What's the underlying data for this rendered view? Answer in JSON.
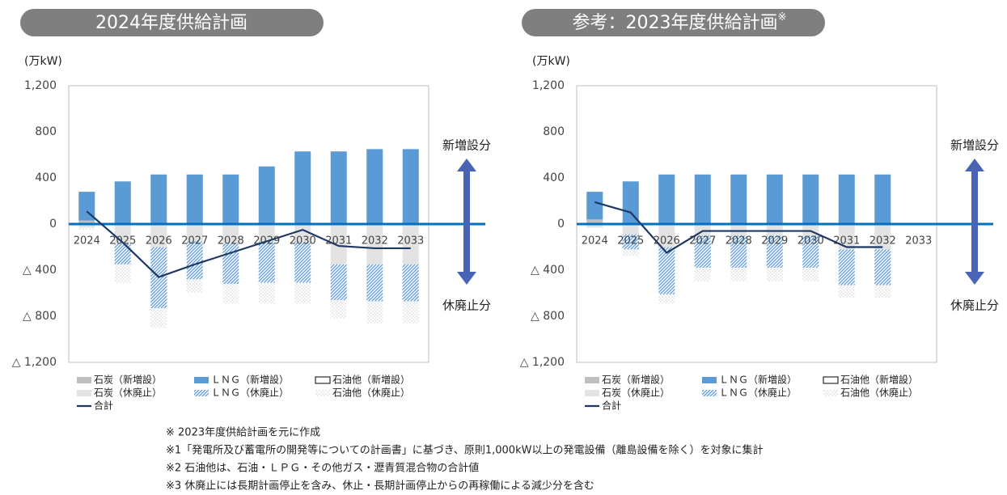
{
  "chart_data": [
    {
      "type": "bar",
      "title": "2024年度供給計画",
      "y_label": "(万kW)",
      "categories": [
        "2024",
        "2025",
        "2026",
        "2027",
        "2028",
        "2029",
        "2030",
        "2031",
        "2032",
        "2033"
      ],
      "ylim": [
        -1200,
        1200
      ],
      "yticks": [
        {
          "value": 1200,
          "label": "1,200"
        },
        800,
        400,
        0,
        {
          "value": -400,
          "label": "△ 400"
        },
        {
          "value": -800,
          "label": "△ 800"
        },
        {
          "value": -1200,
          "label": "△ 1,200"
        }
      ],
      "annotations": [
        "新増設分",
        "休廃止分"
      ],
      "series": [
        {
          "name": "石炭（新増設）",
          "color": "#bfbfbf",
          "values": [
            30,
            0,
            0,
            0,
            0,
            0,
            0,
            0,
            0,
            0
          ]
        },
        {
          "name": "ＬＮＧ（新増設）",
          "color": "#5b9bd5",
          "values": [
            250,
            370,
            430,
            430,
            430,
            500,
            630,
            630,
            650,
            650
          ]
        },
        {
          "name": "石油他（新増設）",
          "color": "#ffffff",
          "values": [
            0,
            0,
            0,
            0,
            0,
            0,
            0,
            0,
            0,
            0
          ]
        },
        {
          "name": "石炭（休廃止）",
          "color": "#e3e3e3",
          "values": [
            -30,
            -170,
            -200,
            -150,
            -170,
            -150,
            -150,
            -350,
            -350,
            -350
          ]
        },
        {
          "name": "ＬＮＧ（休廃止）",
          "color": "#5b9bd5",
          "pattern": "hatch",
          "values": [
            0,
            -180,
            -530,
            -330,
            -350,
            -360,
            -360,
            -310,
            -320,
            -320
          ]
        },
        {
          "name": "石油他（休廃止）",
          "color": "#c8c8c8",
          "pattern": "dots",
          "values": [
            -20,
            -160,
            -170,
            -120,
            -170,
            -180,
            -180,
            -160,
            -190,
            -190
          ]
        },
        {
          "name": "合計",
          "type": "line",
          "color": "#1f3864",
          "values": [
            110,
            -160,
            -460,
            -350,
            -250,
            -150,
            -50,
            -190,
            -210,
            -210
          ]
        }
      ]
    },
    {
      "type": "bar",
      "title": "参考：2023年度供給計画",
      "title_mark": "※",
      "y_label": "(万kW)",
      "categories": [
        "2024",
        "2025",
        "2026",
        "2027",
        "2028",
        "2029",
        "2030",
        "2031",
        "2032",
        "2033"
      ],
      "ylim": [
        -1200,
        1200
      ],
      "yticks": [
        {
          "value": 1200,
          "label": "1,200"
        },
        800,
        400,
        0,
        {
          "value": -400,
          "label": "△ 400"
        },
        {
          "value": -800,
          "label": "△ 800"
        },
        {
          "value": -1200,
          "label": "△ 1,200"
        }
      ],
      "annotations": [
        "新増設分",
        "休廃止分"
      ],
      "series": [
        {
          "name": "石炭（新増設）",
          "color": "#bfbfbf",
          "values": [
            40,
            0,
            0,
            0,
            0,
            0,
            0,
            0,
            0,
            0
          ]
        },
        {
          "name": "ＬＮＧ（新増設）",
          "color": "#5b9bd5",
          "values": [
            240,
            370,
            430,
            430,
            430,
            430,
            430,
            430,
            430,
            0
          ]
        },
        {
          "name": "石油他（新増設）",
          "color": "#ffffff",
          "values": [
            0,
            0,
            0,
            0,
            0,
            0,
            0,
            0,
            0,
            0
          ]
        },
        {
          "name": "石炭（休廃止）",
          "color": "#e3e3e3",
          "values": [
            -30,
            -90,
            -200,
            -100,
            -100,
            -100,
            -100,
            -220,
            -220,
            0
          ]
        },
        {
          "name": "ＬＮＧ（休廃止）",
          "color": "#5b9bd5",
          "pattern": "hatch",
          "values": [
            0,
            -130,
            -410,
            -280,
            -280,
            -280,
            -280,
            -310,
            -310,
            0
          ]
        },
        {
          "name": "石油他（休廃止）",
          "color": "#c8c8c8",
          "pattern": "dots",
          "values": [
            0,
            -60,
            -80,
            -120,
            -120,
            -120,
            -120,
            -110,
            -110,
            0
          ]
        },
        {
          "name": "合計",
          "type": "line",
          "color": "#1f3864",
          "values": [
            190,
            100,
            -250,
            -60,
            -60,
            -60,
            -60,
            -200,
            -200,
            null
          ]
        }
      ]
    }
  ],
  "footnotes": [
    "※ 2023年度供給計画を元に作成",
    "※1「発電所及び蓄電所の開発等についての計画書」に基づき、原則1,000kW以上の発電設備（離島設備を除く）を対象に集計",
    "※2 石油他は、石油・ＬＰＧ・その他ガス・瀝青質混合物の合計値",
    "※3 休廃止には長期計画停止を含み、休止・長期計画停止からの再稼働による減少分を含む"
  ]
}
